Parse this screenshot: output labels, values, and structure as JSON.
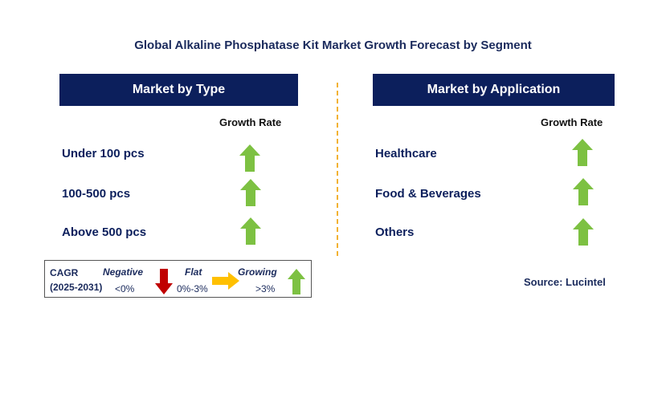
{
  "title": "Global Alkaline Phosphatase Kit Market Growth Forecast by Segment",
  "panels": [
    {
      "header": "Market by Type",
      "column_label": "Growth Rate",
      "rows": [
        {
          "label": "Under 100 pcs",
          "trend": "growing"
        },
        {
          "label": "100-500 pcs",
          "trend": "growing"
        },
        {
          "label": "Above 500 pcs",
          "trend": "growing"
        }
      ]
    },
    {
      "header": "Market by Application",
      "column_label": "Growth Rate",
      "rows": [
        {
          "label": "Healthcare",
          "trend": "growing"
        },
        {
          "label": "Food & Beverages",
          "trend": "growing"
        },
        {
          "label": "Others",
          "trend": "growing"
        }
      ]
    }
  ],
  "legend": {
    "cagr_label": "CAGR",
    "period": "(2025-2031)",
    "negative": {
      "label": "Negative",
      "range": "<0%",
      "color": "#c00000"
    },
    "flat": {
      "label": "Flat",
      "range": "0%-3%",
      "color": "#ffc000"
    },
    "growing": {
      "label": "Growing",
      "range": ">3%",
      "color": "#7dc142"
    }
  },
  "source": "Source: Lucintel",
  "colors": {
    "header_bg": "#0c1f5c",
    "divider": "#f2b233",
    "arrow_up": "#7dc142"
  }
}
